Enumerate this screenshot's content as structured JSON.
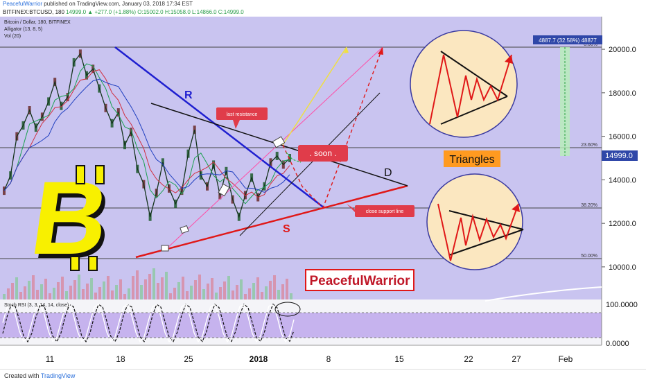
{
  "header": {
    "author": "PeacefulWarrior",
    "published": "published on TradingView.com, January 03, 2018 17:34 EST",
    "symbol_line": "BITFINEX:BTCUSD, 180",
    "ohlc": "14999.0 ▲ +277.0 (+1.88%) O:15002.0 H:15058.0 L:14866.0 C:14999.0"
  },
  "legend": {
    "title": "Bitcoin / Dollar, 180, BITFINEX",
    "alligator": "Alligator (13, 8, 5)",
    "vol": "Vol (20)",
    "rsi": "Stoch RSI (3, 3, 14, 14, close)"
  },
  "annotations": {
    "R": "R",
    "S": "S",
    "D": "D",
    "last_resistance": "last resistance",
    "soon": ". soon .",
    "close_support": "close support line",
    "triangles": "Triangles",
    "watermark": "PeacefulWarrior",
    "measure": "4887.7 (32.58%) 48877"
  },
  "fib_labels": [
    "0.00%",
    "23.60%",
    "38.20%",
    "50.00%"
  ],
  "chart_data": {
    "type": "line",
    "title": "Bitcoin / Dollar, 180, BITFINEX",
    "ylim": [
      8500,
      21500
    ],
    "y_ticks": [
      "20000.0",
      "18000.0",
      "16000.0",
      "14000.0",
      "12000.0",
      "10000.0"
    ],
    "y_tick_values": [
      20000,
      18000,
      16000,
      14000,
      12000,
      10000
    ],
    "x_ticks": [
      "11",
      "18",
      "25",
      "2018",
      "8",
      "15",
      "22",
      "27",
      "Feb"
    ],
    "last_price": "14999.0",
    "rsi_ticks": [
      "100.0000",
      "0.0000"
    ],
    "series": [
      {
        "values": [
          13500,
          14200,
          16000,
          16500,
          17200,
          16400,
          16900,
          17600,
          18500,
          17400,
          17800,
          19400,
          19800,
          18800,
          19100,
          18200,
          17300,
          16600,
          17100,
          15600,
          16200,
          14500,
          13800,
          12300,
          13400,
          14800,
          13600,
          12900,
          13500,
          15200,
          16300,
          14200,
          13700,
          14700,
          13300,
          14400,
          13100,
          12300,
          13300,
          14100,
          13200,
          13700,
          14800,
          15100,
          14700,
          15000
        ]
      }
    ]
  },
  "footer": {
    "created": "Created with",
    "brand": "TradingView"
  },
  "colors": {
    "plot_bg": "#c9c4f0",
    "resistance": "#1f1fd0",
    "support": "#e01818",
    "dark_line": "#111111",
    "panel_bg": "#fbe7c0"
  }
}
